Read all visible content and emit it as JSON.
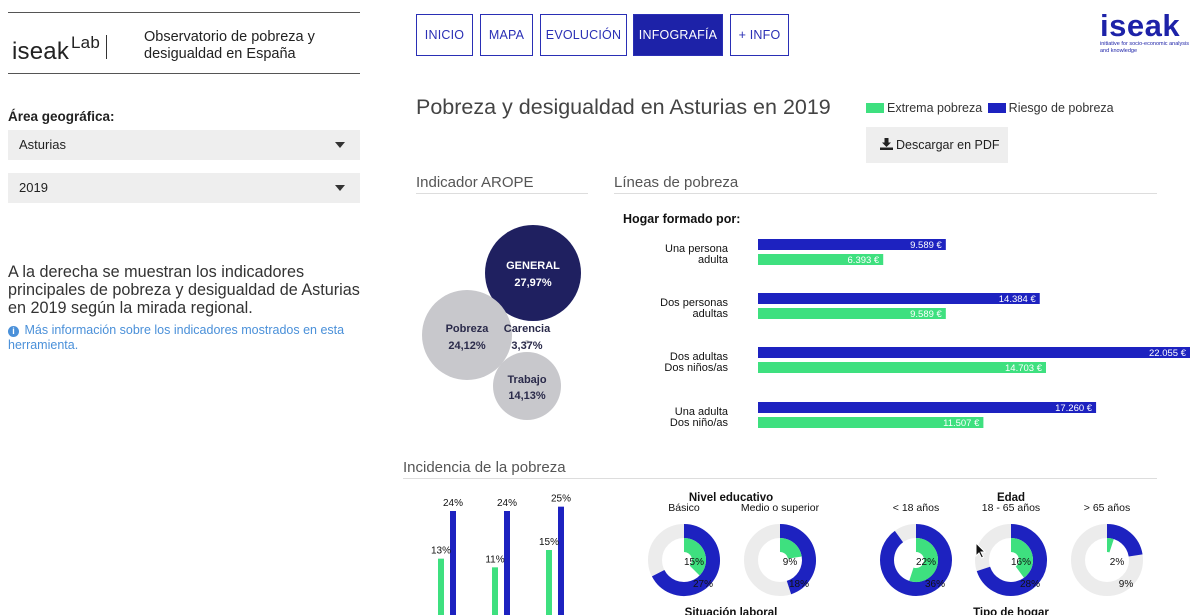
{
  "sidebar": {
    "logo_text": "iseak",
    "logo_sup": "Lab",
    "site_title": "Observatorio de pobreza y desigualdad en España",
    "area_label": "Área geográfica:",
    "region_select": "Asturias",
    "year_select": "2019",
    "intro_text": "A la derecha se muestran los indicadores principales de pobreza y desigualdad de Asturias en 2019 según la mirada regional.",
    "more_info_text": "Más información sobre los indicadores mostrados en esta herramienta."
  },
  "nav": {
    "tabs": [
      {
        "label": "INICIO"
      },
      {
        "label": "MAPA"
      },
      {
        "label": "EVOLUCIÓN"
      },
      {
        "label": "INFOGRAFÍA"
      },
      {
        "label": "+ INFO"
      }
    ],
    "active_index": 3
  },
  "brand": {
    "name": "iseak",
    "tagline": "initiative for socio-economic analysis and knowledge",
    "color": "#1d22a8"
  },
  "header": {
    "title": "Pobreza y desigualdad en Asturias en 2019",
    "legend_extreme": "Extrema pobreza",
    "legend_risk": "Riesgo de pobreza",
    "pdf_button": "Descargar en PDF"
  },
  "colors": {
    "extreme": "#3ee07f",
    "risk": "#1d22c0",
    "general_bubble": "#1f2060",
    "grey_bubble": "#c8c8cc"
  },
  "arope": {
    "title": "Indicador AROPE",
    "general_label": "GENERAL",
    "general_value": "27,97%",
    "pobreza_label": "Pobreza",
    "pobreza_value": "24,12%",
    "carencia_label": "Carencia",
    "carencia_value": "3,37%",
    "trabajo_label": "Trabajo",
    "trabajo_value": "14,13%"
  },
  "poverty_lines": {
    "title": "Líneas de pobreza",
    "subtitle": "Hogar formado por:",
    "households": [
      {
        "label1": "Una persona",
        "label2": "adulta",
        "risk": 9589,
        "risk_label": "9.589 €",
        "extreme": 6393,
        "extreme_label": "6.393 €"
      },
      {
        "label1": "Dos personas",
        "label2": "adultas",
        "risk": 14384,
        "risk_label": "14.384 €",
        "extreme": 9589,
        "extreme_label": "9.589 €"
      },
      {
        "label1": "Dos adultas",
        "label2": "Dos niños/as",
        "risk": 22055,
        "risk_label": "22.055 €",
        "extreme": 14703,
        "extreme_label": "14.703 €"
      },
      {
        "label1": "Una adulta",
        "label2": "Dos niño/as",
        "risk": 17260,
        "risk_label": "17.260 €",
        "extreme": 11507,
        "extreme_label": "11.507 €"
      }
    ]
  },
  "incidence": {
    "title": "Incidencia de la pobreza",
    "bar_groups": [
      {
        "risk_label": "24%",
        "risk": 24,
        "extreme_label": "13%",
        "extreme": 13
      },
      {
        "risk_label": "24%",
        "risk": 24,
        "extreme_label": "11%",
        "extreme": 11
      },
      {
        "risk_label": "25%",
        "risk": 25,
        "extreme_label": "15%",
        "extreme": 15
      }
    ],
    "education_title": "Nivel educativo",
    "education": [
      {
        "label": "Básico",
        "extreme": 15,
        "extreme_label": "15%",
        "risk": 27,
        "risk_label": "27%"
      },
      {
        "label": "Medio o superior",
        "extreme": 9,
        "extreme_label": "9%",
        "risk": 18,
        "risk_label": "18%"
      }
    ],
    "age_title": "Edad",
    "age": [
      {
        "label": "< 18 años",
        "extreme": 22,
        "extreme_label": "22%",
        "risk": 36,
        "risk_label": "36%"
      },
      {
        "label": "18 - 65 años",
        "extreme": 16,
        "extreme_label": "16%",
        "risk": 28,
        "risk_label": "28%"
      },
      {
        "label": "> 65 años",
        "extreme": 2,
        "extreme_label": "2%",
        "risk": 9,
        "risk_label": "9%"
      }
    ],
    "labor_title": "Situación laboral",
    "household_title": "Tipo de hogar"
  }
}
